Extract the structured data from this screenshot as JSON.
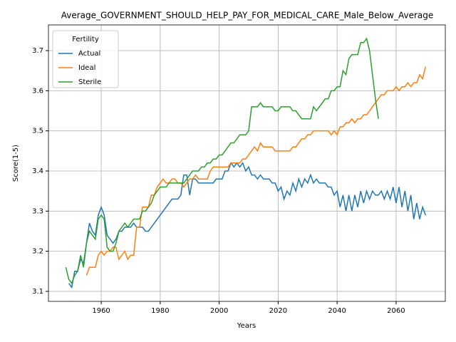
{
  "chart_data": {
    "type": "line",
    "title": "Average_GOVERNMENT_SHOULD_HELP_PAY_FOR_MEDICAL_CARE_Male_Below_Average",
    "xlabel": "Years",
    "ylabel": "Score(1-5)",
    "xlim": [
      1942.1,
      2076.7
    ],
    "ylim": [
      3.075,
      3.764
    ],
    "xticks": [
      1960,
      1980,
      2000,
      2020,
      2040,
      2060
    ],
    "yticks": [
      3.1,
      3.2,
      3.3,
      3.4,
      3.5,
      3.6,
      3.7
    ],
    "grid": true,
    "legend_title": "Fertility",
    "legend_loc": "upper left",
    "series": [
      {
        "name": "Actual",
        "color": "#1f77b4",
        "x": [
          1949,
          1950,
          1951,
          1952,
          1953,
          1954,
          1955,
          1956,
          1957,
          1958,
          1959,
          1960,
          1961,
          1962,
          1963,
          1964,
          1965,
          1966,
          1967,
          1968,
          1969,
          1970,
          1971,
          1972,
          1973,
          1974,
          1975,
          1976,
          1977,
          1978,
          1979,
          1980,
          1981,
          1982,
          1983,
          1984,
          1985,
          1986,
          1987,
          1988,
          1989,
          1990,
          1991,
          1992,
          1993,
          1994,
          1995,
          1996,
          1997,
          1998,
          1999,
          2000,
          2001,
          2002,
          2003,
          2004,
          2005,
          2006,
          2007,
          2008,
          2009,
          2010,
          2011,
          2012,
          2013,
          2014,
          2015,
          2016,
          2017,
          2018,
          2019,
          2020,
          2021,
          2022,
          2023,
          2024,
          2025,
          2026,
          2027,
          2028,
          2029,
          2030,
          2031,
          2032,
          2033,
          2034,
          2035,
          2036,
          2037,
          2038,
          2039,
          2040,
          2041,
          2042,
          2043,
          2044,
          2045,
          2046,
          2047,
          2048,
          2049,
          2050,
          2051,
          2052,
          2053,
          2054,
          2055,
          2056,
          2057,
          2058,
          2059,
          2060,
          2061,
          2062,
          2063,
          2064,
          2065,
          2066,
          2067,
          2068,
          2069,
          2070
        ],
        "values": [
          3.12,
          3.11,
          3.15,
          3.15,
          3.18,
          3.17,
          3.22,
          3.27,
          3.25,
          3.24,
          3.29,
          3.31,
          3.29,
          3.24,
          3.23,
          3.22,
          3.23,
          3.25,
          3.25,
          3.26,
          3.26,
          3.26,
          3.27,
          3.26,
          3.26,
          3.26,
          3.25,
          3.25,
          3.26,
          3.27,
          3.28,
          3.29,
          3.3,
          3.31,
          3.32,
          3.33,
          3.33,
          3.33,
          3.34,
          3.39,
          3.39,
          3.34,
          3.38,
          3.38,
          3.37,
          3.37,
          3.37,
          3.37,
          3.37,
          3.37,
          3.38,
          3.38,
          3.38,
          3.4,
          3.4,
          3.42,
          3.41,
          3.42,
          3.41,
          3.42,
          3.4,
          3.41,
          3.39,
          3.39,
          3.38,
          3.39,
          3.38,
          3.38,
          3.38,
          3.37,
          3.37,
          3.35,
          3.36,
          3.33,
          3.35,
          3.34,
          3.37,
          3.35,
          3.38,
          3.36,
          3.38,
          3.37,
          3.39,
          3.37,
          3.38,
          3.37,
          3.37,
          3.37,
          3.36,
          3.36,
          3.34,
          3.35,
          3.31,
          3.34,
          3.3,
          3.34,
          3.3,
          3.34,
          3.31,
          3.35,
          3.32,
          3.35,
          3.33,
          3.35,
          3.34,
          3.34,
          3.35,
          3.33,
          3.35,
          3.33,
          3.36,
          3.32,
          3.36,
          3.31,
          3.35,
          3.3,
          3.34,
          3.28,
          3.32,
          3.28,
          3.31,
          3.29
        ]
      },
      {
        "name": "Ideal",
        "color": "#ff7f0e",
        "x": [
          1955,
          1956,
          1957,
          1958,
          1959,
          1960,
          1961,
          1962,
          1963,
          1964,
          1965,
          1966,
          1967,
          1968,
          1969,
          1970,
          1971,
          1972,
          1973,
          1974,
          1975,
          1976,
          1977,
          1978,
          1979,
          1980,
          1981,
          1982,
          1983,
          1984,
          1985,
          1986,
          1987,
          1988,
          1989,
          1990,
          1991,
          1992,
          1993,
          1994,
          1995,
          1996,
          1997,
          1998,
          1999,
          2000,
          2001,
          2002,
          2003,
          2004,
          2005,
          2006,
          2007,
          2008,
          2009,
          2010,
          2011,
          2012,
          2013,
          2014,
          2015,
          2016,
          2017,
          2018,
          2019,
          2020,
          2021,
          2022,
          2023,
          2024,
          2025,
          2026,
          2027,
          2028,
          2029,
          2030,
          2031,
          2032,
          2033,
          2034,
          2035,
          2036,
          2037,
          2038,
          2039,
          2040,
          2041,
          2042,
          2043,
          2044,
          2045,
          2046,
          2047,
          2048,
          2049,
          2050,
          2051,
          2052,
          2053,
          2054,
          2055,
          2056,
          2057,
          2058,
          2059,
          2060,
          2061,
          2062,
          2063,
          2064,
          2065,
          2066,
          2067,
          2068,
          2069,
          2070
        ],
        "values": [
          3.14,
          3.16,
          3.16,
          3.16,
          3.19,
          3.2,
          3.19,
          3.2,
          3.2,
          3.21,
          3.21,
          3.18,
          3.19,
          3.2,
          3.18,
          3.19,
          3.19,
          3.26,
          3.26,
          3.31,
          3.31,
          3.31,
          3.34,
          3.34,
          3.36,
          3.37,
          3.38,
          3.37,
          3.37,
          3.38,
          3.38,
          3.37,
          3.37,
          3.36,
          3.37,
          3.38,
          3.38,
          3.39,
          3.38,
          3.38,
          3.38,
          3.38,
          3.4,
          3.41,
          3.41,
          3.41,
          3.41,
          3.41,
          3.41,
          3.42,
          3.42,
          3.42,
          3.42,
          3.43,
          3.43,
          3.44,
          3.45,
          3.46,
          3.45,
          3.47,
          3.46,
          3.46,
          3.46,
          3.46,
          3.45,
          3.45,
          3.45,
          3.45,
          3.45,
          3.45,
          3.46,
          3.46,
          3.47,
          3.48,
          3.48,
          3.49,
          3.49,
          3.5,
          3.5,
          3.5,
          3.5,
          3.5,
          3.5,
          3.49,
          3.5,
          3.49,
          3.51,
          3.51,
          3.52,
          3.52,
          3.53,
          3.52,
          3.53,
          3.53,
          3.54,
          3.54,
          3.55,
          3.56,
          3.57,
          3.58,
          3.59,
          3.59,
          3.6,
          3.6,
          3.6,
          3.61,
          3.6,
          3.61,
          3.61,
          3.62,
          3.61,
          3.62,
          3.62,
          3.64,
          3.63,
          3.66
        ]
      },
      {
        "name": "Sterile",
        "color": "#2ca02c",
        "x": [
          1948,
          1949,
          1950,
          1951,
          1952,
          1953,
          1954,
          1955,
          1956,
          1957,
          1958,
          1959,
          1960,
          1961,
          1962,
          1963,
          1964,
          1965,
          1966,
          1967,
          1968,
          1969,
          1970,
          1971,
          1972,
          1973,
          1974,
          1975,
          1976,
          1977,
          1978,
          1979,
          1980,
          1981,
          1982,
          1983,
          1984,
          1985,
          1986,
          1987,
          1988,
          1989,
          1990,
          1991,
          1992,
          1993,
          1994,
          1995,
          1996,
          1997,
          1998,
          1999,
          2000,
          2001,
          2002,
          2003,
          2004,
          2005,
          2006,
          2007,
          2008,
          2009,
          2010,
          2011,
          2012,
          2013,
          2014,
          2015,
          2016,
          2017,
          2018,
          2019,
          2020,
          2021,
          2022,
          2023,
          2024,
          2025,
          2026,
          2027,
          2028,
          2029,
          2030,
          2031,
          2032,
          2033,
          2034,
          2035,
          2036,
          2037,
          2038,
          2039,
          2040,
          2041,
          2042,
          2043,
          2044,
          2045,
          2046,
          2047,
          2048,
          2049,
          2050,
          2051,
          2052,
          2053,
          2054
        ],
        "values": [
          3.16,
          3.13,
          3.12,
          3.14,
          3.15,
          3.19,
          3.16,
          3.22,
          3.25,
          3.24,
          3.23,
          3.28,
          3.29,
          3.28,
          3.21,
          3.2,
          3.2,
          3.22,
          3.25,
          3.26,
          3.27,
          3.26,
          3.27,
          3.28,
          3.28,
          3.28,
          3.3,
          3.3,
          3.31,
          3.32,
          3.34,
          3.35,
          3.36,
          3.36,
          3.36,
          3.37,
          3.37,
          3.37,
          3.37,
          3.37,
          3.37,
          3.38,
          3.39,
          3.4,
          3.4,
          3.4,
          3.41,
          3.41,
          3.42,
          3.42,
          3.43,
          3.43,
          3.44,
          3.44,
          3.45,
          3.46,
          3.47,
          3.47,
          3.48,
          3.49,
          3.49,
          3.49,
          3.5,
          3.56,
          3.56,
          3.56,
          3.57,
          3.56,
          3.56,
          3.56,
          3.56,
          3.55,
          3.55,
          3.56,
          3.56,
          3.56,
          3.56,
          3.55,
          3.55,
          3.54,
          3.53,
          3.53,
          3.53,
          3.53,
          3.56,
          3.55,
          3.56,
          3.57,
          3.58,
          3.58,
          3.6,
          3.6,
          3.61,
          3.61,
          3.65,
          3.64,
          3.68,
          3.69,
          3.69,
          3.69,
          3.72,
          3.72,
          3.73,
          3.7,
          3.64,
          3.58,
          3.53
        ]
      }
    ]
  }
}
